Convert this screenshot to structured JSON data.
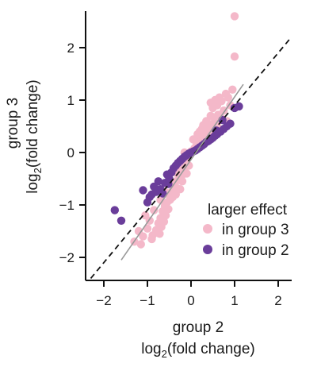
{
  "chart_data": {
    "type": "scatter",
    "x_axis": {
      "title_line1": "group 2",
      "title_line2_main": "log",
      "title_line2_sub": "2",
      "title_line2_rest": "(fold change)",
      "ticks": [
        -2,
        -1,
        0,
        1,
        2
      ],
      "tick_labels": [
        "−2",
        "−1",
        "0",
        "1",
        "2"
      ],
      "range": [
        -2.4,
        2.3
      ]
    },
    "y_axis": {
      "title_line1": "group 3",
      "title_line2_main": "log",
      "title_line2_sub": "2",
      "title_line2_rest": "(fold change)",
      "ticks": [
        -2,
        -1,
        0,
        1,
        2
      ],
      "tick_labels": [
        "−2",
        "−1",
        "0",
        "1",
        "2"
      ],
      "range": [
        -2.45,
        2.7
      ]
    },
    "grid": false,
    "legend": {
      "title": "larger effect",
      "position": "lower-right",
      "entries": [
        {
          "label": "in group 3",
          "color": "#f4b8c9"
        },
        {
          "label": "in group 2",
          "color": "#6a3d9a"
        }
      ]
    },
    "reference_lines": [
      {
        "kind": "identity",
        "style": "dashed",
        "color": "#111111",
        "from": [
          -2.3,
          -2.4
        ],
        "to": [
          2.3,
          2.2
        ]
      },
      {
        "kind": "fit",
        "style": "solid",
        "color": "#999999",
        "from": [
          -1.6,
          -2.05
        ],
        "to": [
          1.2,
          1.3
        ]
      }
    ],
    "series": [
      {
        "name": "in group 3",
        "color": "#f4b8c9",
        "points": [
          [
            1.0,
            2.6
          ],
          [
            1.0,
            1.83
          ],
          [
            0.95,
            1.2
          ],
          [
            0.85,
            1.05
          ],
          [
            0.7,
            0.98
          ],
          [
            0.6,
            0.9
          ],
          [
            0.75,
            0.8
          ],
          [
            0.5,
            0.85
          ],
          [
            0.62,
            0.72
          ],
          [
            0.45,
            0.7
          ],
          [
            0.55,
            0.62
          ],
          [
            0.4,
            0.55
          ],
          [
            0.48,
            0.5
          ],
          [
            0.35,
            0.48
          ],
          [
            0.42,
            0.42
          ],
          [
            0.3,
            0.4
          ],
          [
            0.36,
            0.35
          ],
          [
            0.28,
            0.3
          ],
          [
            0.22,
            0.28
          ],
          [
            0.3,
            0.22
          ],
          [
            0.2,
            0.2
          ],
          [
            0.15,
            0.18
          ],
          [
            0.25,
            0.15
          ],
          [
            0.12,
            0.12
          ],
          [
            0.18,
            0.1
          ],
          [
            0.08,
            0.08
          ],
          [
            0.1,
            0.05
          ],
          [
            0.05,
            0.04
          ],
          [
            0.0,
            0.02
          ],
          [
            -0.05,
            -0.05
          ],
          [
            -0.1,
            -0.1
          ],
          [
            -0.12,
            -0.18
          ],
          [
            -0.18,
            -0.22
          ],
          [
            -0.2,
            -0.3
          ],
          [
            -0.25,
            -0.35
          ],
          [
            -0.15,
            -0.28
          ],
          [
            -0.3,
            -0.42
          ],
          [
            -0.28,
            -0.5
          ],
          [
            -0.35,
            -0.55
          ],
          [
            -0.22,
            -0.45
          ],
          [
            -0.4,
            -0.62
          ],
          [
            -0.38,
            -0.7
          ],
          [
            -0.45,
            -0.75
          ],
          [
            -0.32,
            -0.68
          ],
          [
            -0.5,
            -0.82
          ],
          [
            -0.48,
            -0.9
          ],
          [
            -0.55,
            -0.95
          ],
          [
            -0.42,
            -0.85
          ],
          [
            -0.6,
            -1.02
          ],
          [
            -0.52,
            -1.08
          ],
          [
            -0.65,
            -1.12
          ],
          [
            -0.58,
            -1.2
          ],
          [
            -0.7,
            -1.25
          ],
          [
            -0.62,
            -1.32
          ],
          [
            -0.75,
            -1.35
          ],
          [
            -0.68,
            -1.42
          ],
          [
            -0.8,
            -1.48
          ],
          [
            -0.72,
            -1.55
          ],
          [
            -0.88,
            -1.58
          ],
          [
            -0.9,
            -1.65
          ],
          [
            -1.0,
            -1.45
          ],
          [
            -1.1,
            -1.6
          ],
          [
            -1.2,
            -1.5
          ],
          [
            -1.3,
            -1.7
          ],
          [
            -1.15,
            -1.75
          ],
          [
            -0.95,
            -1.3
          ],
          [
            -0.85,
            -1.1
          ],
          [
            -1.05,
            -1.2
          ],
          [
            -0.3,
            -0.3
          ],
          [
            -0.45,
            -0.55
          ],
          [
            -0.2,
            -0.55
          ],
          [
            -0.1,
            -0.4
          ],
          [
            -0.05,
            -0.25
          ],
          [
            -0.35,
            -0.8
          ],
          [
            -0.25,
            -0.7
          ],
          [
            0.15,
            0.35
          ],
          [
            0.25,
            0.45
          ],
          [
            0.35,
            0.6
          ],
          [
            0.45,
            0.95
          ],
          [
            0.55,
            1.0
          ],
          [
            0.65,
            1.05
          ],
          [
            0.8,
            1.12
          ],
          [
            0.9,
            0.9
          ],
          [
            0.5,
            0.35
          ],
          [
            0.6,
            0.5
          ],
          [
            0.4,
            0.3
          ],
          [
            0.28,
            0.52
          ],
          [
            0.2,
            0.4
          ],
          [
            0.7,
            0.65
          ],
          [
            0.82,
            0.6
          ],
          [
            -0.15,
            0.0
          ],
          [
            0.05,
            0.25
          ],
          [
            -0.6,
            -0.75
          ],
          [
            -0.55,
            -0.6
          ],
          [
            -0.7,
            -0.9
          ]
        ]
      },
      {
        "name": "in group 2",
        "color": "#6a3d9a",
        "points": [
          [
            -1.75,
            -1.1
          ],
          [
            -1.6,
            -1.3
          ],
          [
            -1.0,
            -0.95
          ],
          [
            -0.9,
            -0.8
          ],
          [
            -1.1,
            -0.72
          ],
          [
            -0.8,
            -0.75
          ],
          [
            -0.7,
            -0.7
          ],
          [
            -0.6,
            -0.58
          ],
          [
            -0.75,
            -0.55
          ],
          [
            -0.5,
            -0.5
          ],
          [
            -0.55,
            -0.42
          ],
          [
            -0.45,
            -0.38
          ],
          [
            -0.4,
            -0.3
          ],
          [
            -0.35,
            -0.25
          ],
          [
            -0.3,
            -0.2
          ],
          [
            -0.25,
            -0.16
          ],
          [
            -0.2,
            -0.12
          ],
          [
            -0.15,
            -0.08
          ],
          [
            -0.1,
            -0.05
          ],
          [
            -0.05,
            -0.02
          ],
          [
            0.0,
            0.0
          ],
          [
            0.05,
            0.02
          ],
          [
            0.1,
            0.04
          ],
          [
            0.15,
            0.07
          ],
          [
            0.2,
            0.1
          ],
          [
            0.25,
            0.13
          ],
          [
            0.3,
            0.16
          ],
          [
            0.35,
            0.2
          ],
          [
            0.4,
            0.22
          ],
          [
            0.45,
            0.25
          ],
          [
            0.5,
            0.28
          ],
          [
            0.55,
            0.32
          ],
          [
            0.6,
            0.35
          ],
          [
            0.68,
            0.4
          ],
          [
            0.75,
            0.45
          ],
          [
            0.82,
            0.5
          ],
          [
            0.9,
            0.55
          ],
          [
            1.0,
            0.85
          ],
          [
            1.1,
            0.88
          ],
          [
            0.72,
            0.62
          ],
          [
            -0.65,
            -0.78
          ],
          [
            -0.85,
            -0.65
          ],
          [
            -0.95,
            -0.85
          ],
          [
            -0.52,
            -0.6
          ],
          [
            0.58,
            0.42
          ]
        ]
      }
    ]
  }
}
